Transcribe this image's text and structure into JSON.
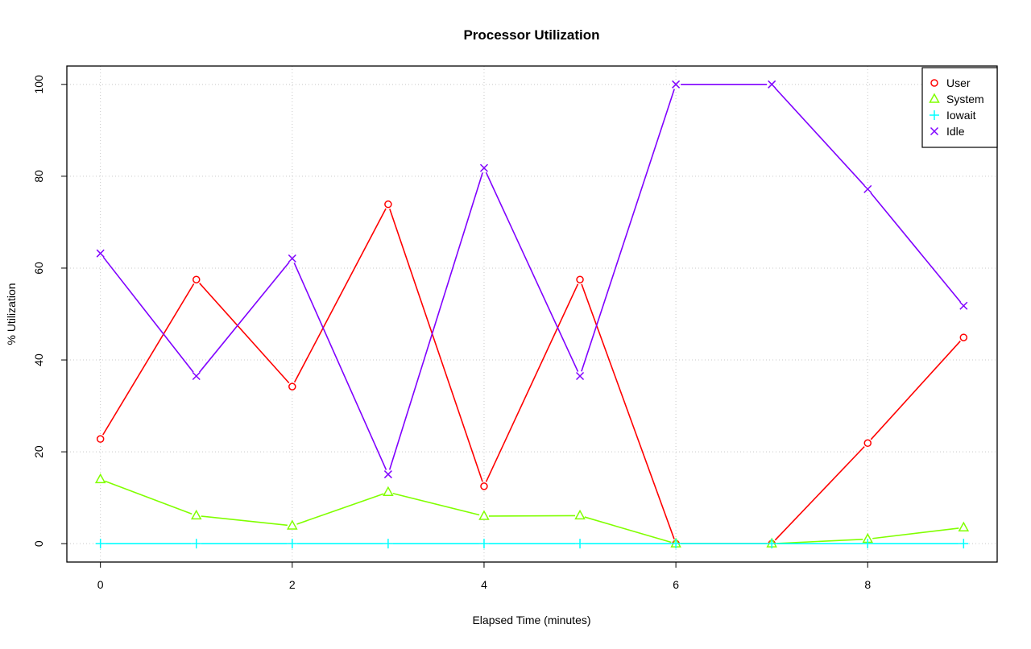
{
  "chart_data": {
    "type": "line",
    "title": "Processor Utilization",
    "xlabel": "Elapsed Time (minutes)",
    "ylabel": "% Utilization",
    "xlim": [
      -0.35,
      9.35
    ],
    "ylim": [
      -4,
      104
    ],
    "x_ticks": [
      0,
      2,
      4,
      6,
      8
    ],
    "y_ticks": [
      0,
      20,
      40,
      60,
      80,
      100
    ],
    "grid": true,
    "legend_position": "top-right",
    "x": [
      0,
      1,
      2,
      3,
      4,
      5,
      6,
      7,
      8,
      9
    ],
    "series": [
      {
        "name": "User",
        "color": "#ff0000",
        "marker": "circle",
        "values": [
          22.8,
          57.5,
          34.2,
          73.9,
          12.5,
          57.5,
          0,
          0,
          21.9,
          44.9
        ]
      },
      {
        "name": "System",
        "color": "#80ff00",
        "marker": "triangle",
        "values": [
          14.0,
          6.1,
          3.9,
          11.2,
          6.0,
          6.1,
          0,
          0,
          1.0,
          3.5
        ]
      },
      {
        "name": "Iowait",
        "color": "#00ffff",
        "marker": "plus",
        "values": [
          0,
          0,
          0,
          0,
          0,
          0,
          0,
          0,
          0,
          0
        ]
      },
      {
        "name": "Idle",
        "color": "#8000ff",
        "marker": "cross",
        "values": [
          63.2,
          36.5,
          62.1,
          15.1,
          81.8,
          36.5,
          100,
          100,
          77.2,
          51.8
        ]
      }
    ]
  }
}
